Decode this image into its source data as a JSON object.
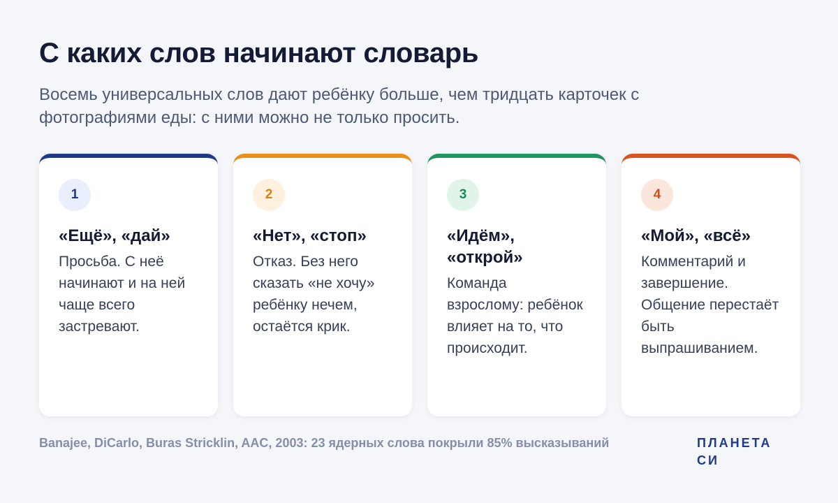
{
  "header": {
    "title": "С каких слов начинают словарь",
    "subtitle": "Восемь универсальных слов дают ребёнку больше, чем тридцать карточек с фотографиями еды: с ними можно не только просить."
  },
  "cards": [
    {
      "number": "1",
      "title": "«Ещё», «дай»",
      "text": "Просьба. С неё начинают и на ней чаще всего застревают.",
      "accent": "#1f3a8a",
      "badge_bg": "#e8eefb",
      "badge_color": "#1f3a8a"
    },
    {
      "number": "2",
      "title": "«Нет», «стоп»",
      "text": "Отказ. Без него сказать «не хочу» ребёнку нечем, остаётся крик.",
      "accent": "#e8901c",
      "badge_bg": "#fdf0de",
      "badge_color": "#d9820f"
    },
    {
      "number": "3",
      "title": "«Идём», «открой»",
      "text": "Команда взрослому: ребёнок влияет на то, что происходит.",
      "accent": "#1f9560",
      "badge_bg": "#e1f4ea",
      "badge_color": "#1f8a58"
    },
    {
      "number": "4",
      "title": "«Мой», «всё»",
      "text": "Комментарий и завершение. Общение перестаёт быть выпрашиванием.",
      "accent": "#d9541c",
      "badge_bg": "#fbe6dc",
      "badge_color": "#c9501f"
    }
  ],
  "footer": {
    "note": "Banajee, DiCarlo, Buras Stricklin, AAC, 2003: 23 ядерных слова покрыли 85% высказываний",
    "logo": "ПЛАНЕТА СИ"
  }
}
